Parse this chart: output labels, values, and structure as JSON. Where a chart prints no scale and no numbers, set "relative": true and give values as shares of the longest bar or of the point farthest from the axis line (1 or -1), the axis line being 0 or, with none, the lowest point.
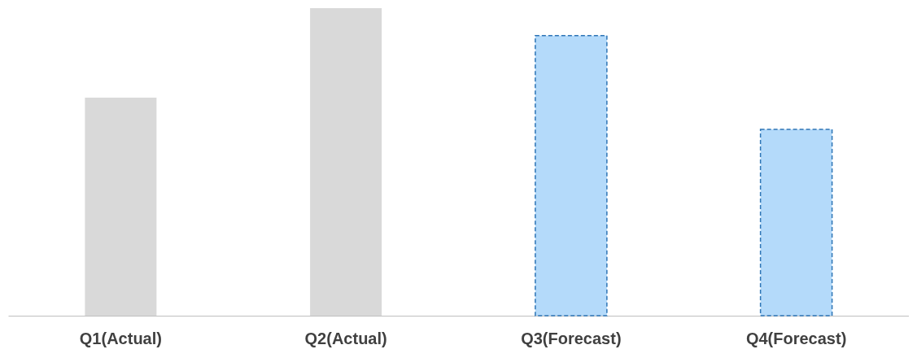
{
  "chart_data": {
    "type": "bar",
    "relative": true,
    "categories": [
      "Q1(Actual)",
      "Q2(Actual)",
      "Q3(Forecast)",
      "Q4(Forecast)"
    ],
    "series": [
      {
        "color": "#d9d9d9",
        "values": [
          0.709,
          1,
          null,
          null
        ]
      },
      {
        "color": "#b4dafa",
        "values": [
          null,
          null,
          0.911,
          0.606
        ],
        "line_style": "dashed"
      }
    ]
  }
}
